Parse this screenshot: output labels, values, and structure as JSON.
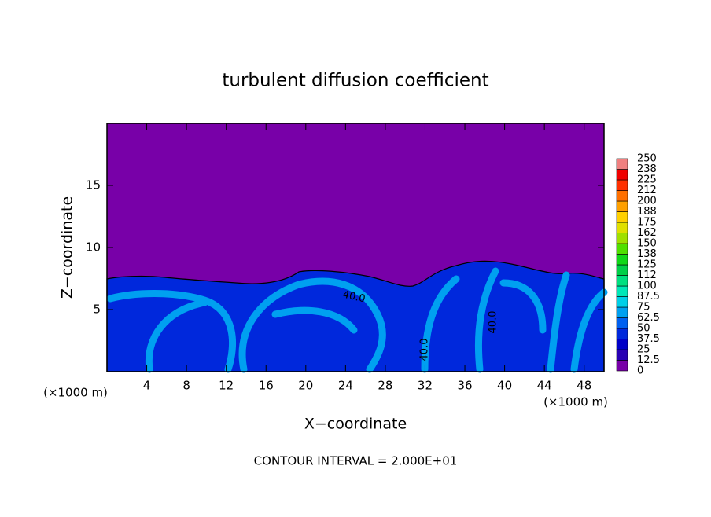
{
  "chart_data": {
    "type": "contour",
    "title": "turbulent diffusion coefficient",
    "xlabel": "X−coordinate",
    "ylabel": "Z−coordinate",
    "x_unit": "(×1000 m)",
    "x_unit_right": "(×1000 m)",
    "footnote": "CONTOUR INTERVAL = 2.000E+01",
    "xlim": [
      0,
      50
    ],
    "xticks": [
      4,
      8,
      12,
      16,
      20,
      24,
      28,
      32,
      36,
      40,
      44,
      48
    ],
    "ylim": [
      0,
      20
    ],
    "yticks": [
      5,
      10,
      15
    ],
    "colorbar_levels": [
      0,
      12.5,
      25,
      37.5,
      50,
      62.5,
      75,
      87.5,
      100,
      112,
      125,
      138,
      150,
      162,
      175,
      188,
      200,
      212,
      225,
      238,
      250
    ],
    "colorbar_colors": [
      "#7800a8",
      "#2800b4",
      "#0000c8",
      "#0028dc",
      "#0060f0",
      "#00a0f0",
      "#00d0e8",
      "#00e8b8",
      "#00e080",
      "#00d048",
      "#10d818",
      "#50e000",
      "#a0e000",
      "#e0e000",
      "#ffd000",
      "#ffa000",
      "#ff7000",
      "#ff3000",
      "#f00000",
      "#f08080"
    ],
    "annotations": [
      "40.0",
      "40.0",
      "40.0"
    ]
  }
}
